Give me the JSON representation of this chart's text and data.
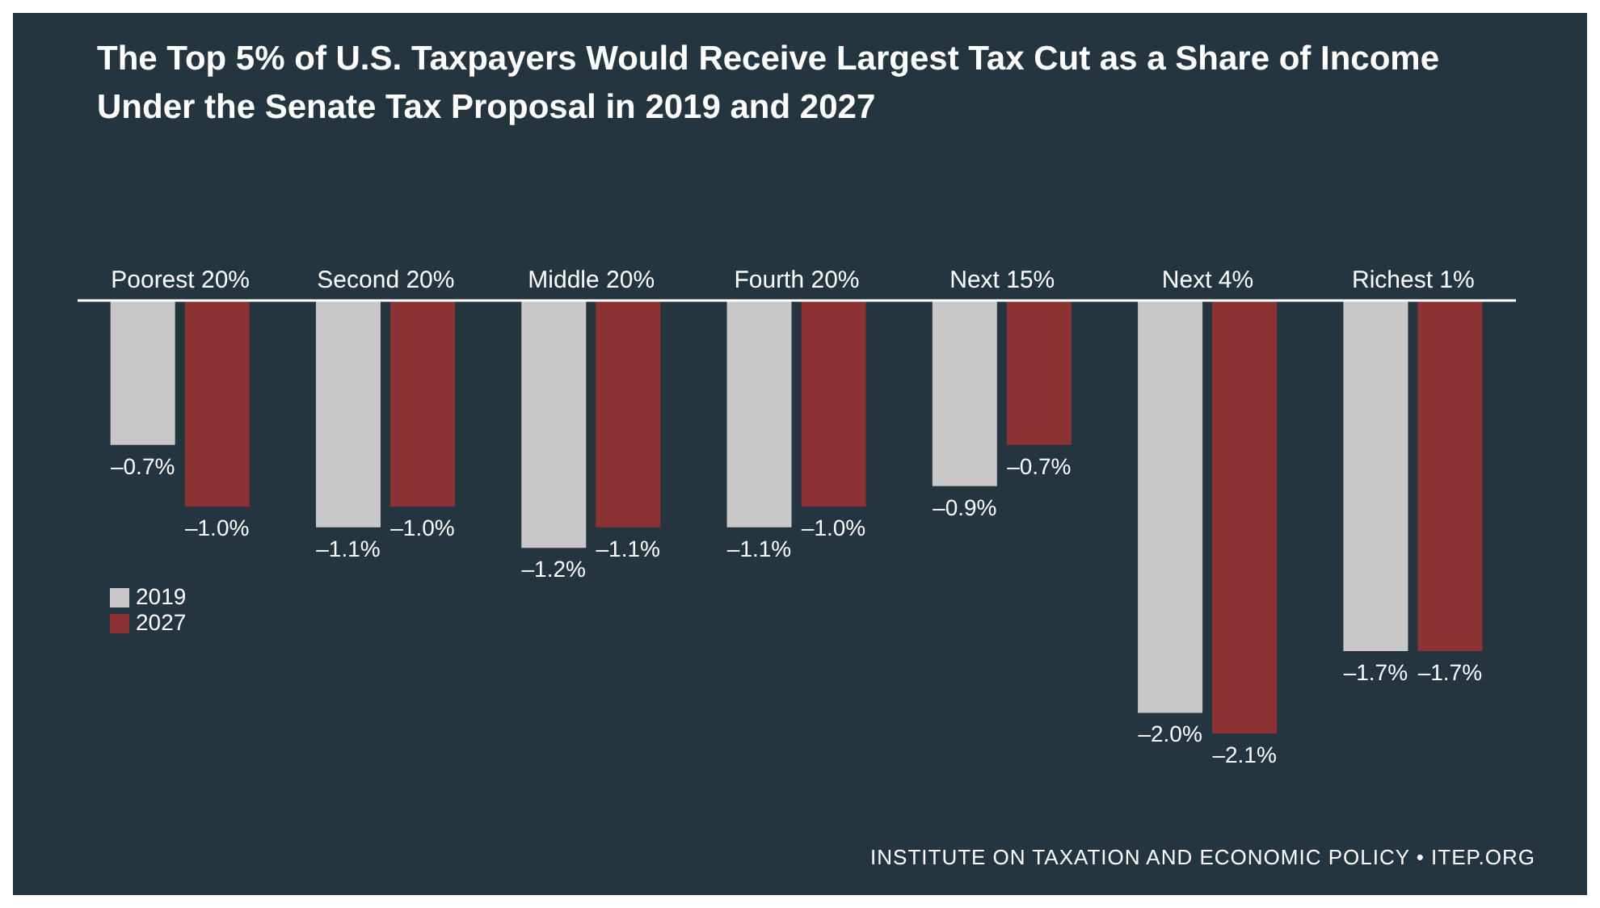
{
  "chart_data": {
    "type": "bar",
    "title": "The Top 5% of U.S. Taxpayers Would Receive Largest Tax Cut as a Share of Income Under the Senate Tax Proposal in 2019 and 2027",
    "categories": [
      "Poorest 20%",
      "Second 20%",
      "Middle 20%",
      "Fourth 20%",
      "Next 15%",
      "Next 4%",
      "Richest 1%"
    ],
    "series": [
      {
        "name": "2019",
        "color": "#c8c8c8",
        "values": [
          -0.7,
          -1.1,
          -1.2,
          -1.1,
          -0.9,
          -2.0,
          -1.7
        ],
        "value_labels": [
          "–0.7%",
          "–1.1%",
          "–1.2%",
          "–1.1%",
          "–0.9%",
          "–2.0%",
          "–1.7%"
        ]
      },
      {
        "name": "2027",
        "color": "#8b3333",
        "values": [
          -1.0,
          -1.0,
          -1.1,
          -1.0,
          -0.7,
          -2.1,
          -1.7
        ],
        "value_labels": [
          "–1.0%",
          "–1.0%",
          "–1.1%",
          "–1.0%",
          "–0.7%",
          "–2.1%",
          "–1.7%"
        ]
      }
    ],
    "legend": "left",
    "grid": false,
    "annotations": [
      "INSTITUTE ON TAXATION AND ECONOMIC POLICY • ITEP.ORG"
    ]
  }
}
